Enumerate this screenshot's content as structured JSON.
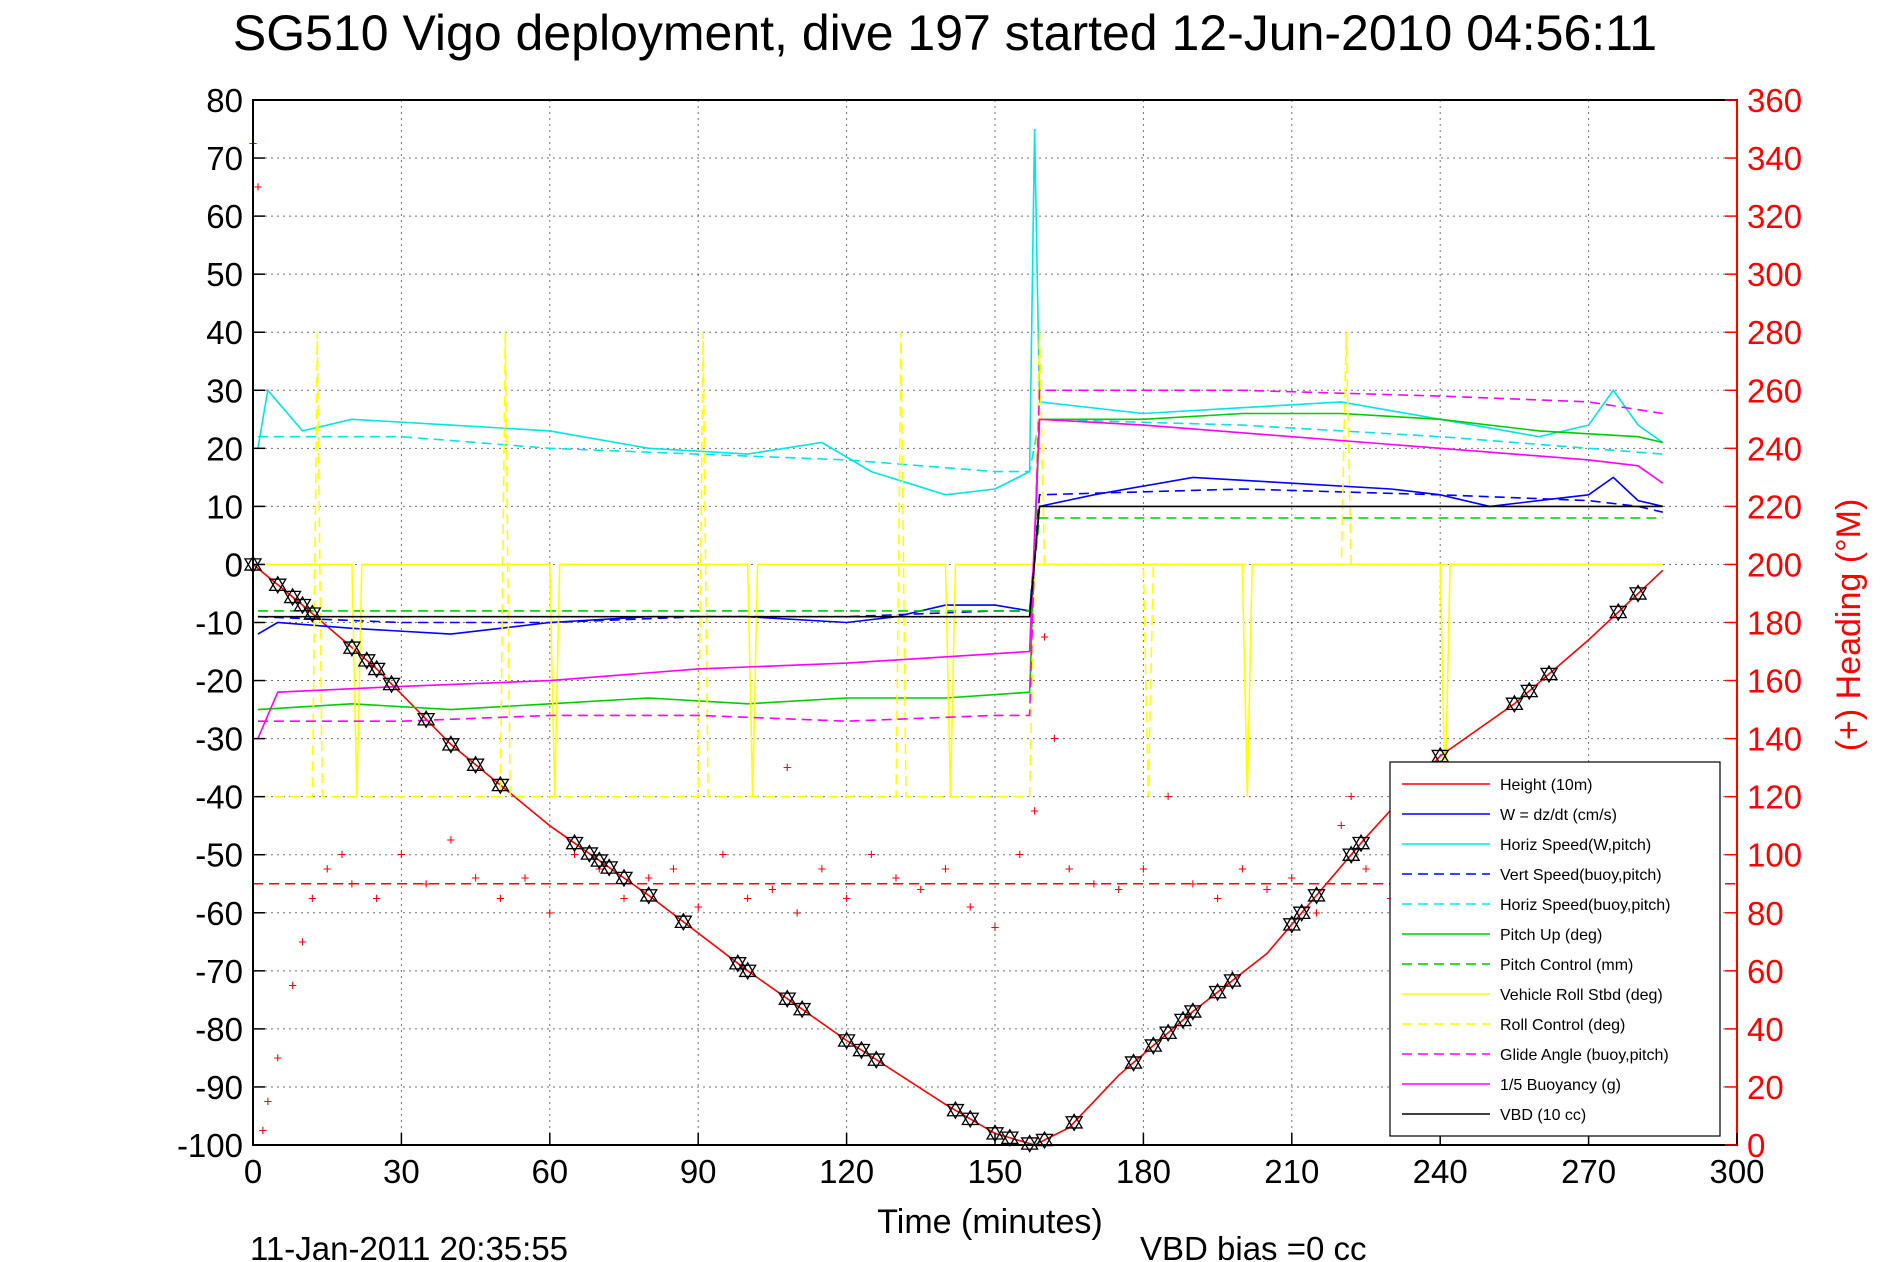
{
  "chart_data": {
    "type": "line",
    "title": "SG510 Vigo deployment, dive 197 started 12-Jun-2010 04:56:11",
    "xlabel": "Time (minutes)",
    "ylabel_right": "(+) Heading (°M)",
    "footer_left": "11-Jan-2011 20:35:55",
    "footer_right": "VBD bias =0 cc",
    "xlim": [
      0,
      300
    ],
    "ylim_left": [
      -100,
      80
    ],
    "ylim_right": [
      0,
      360
    ],
    "xticks": [
      "0",
      "30",
      "60",
      "90",
      "120",
      "150",
      "180",
      "210",
      "240",
      "270",
      "300"
    ],
    "yticks_left": [
      "80",
      "70",
      "60",
      "50",
      "40",
      "30",
      "20",
      "10",
      "0",
      "-10",
      "-20",
      "-30",
      "-40",
      "-50",
      "-60",
      "-70",
      "-80",
      "-90",
      "-100"
    ],
    "yticks_right": [
      "360",
      "340",
      "320",
      "300",
      "280",
      "260",
      "240",
      "220",
      "200",
      "180",
      "160",
      "140",
      "120",
      "100",
      "80",
      "60",
      "40",
      "20",
      "0"
    ],
    "grid": true,
    "legend_position": "bottom-right",
    "series": [
      {
        "name": "Height (10m)",
        "color": "#ff0000",
        "style": "solid",
        "points": [
          [
            0,
            0
          ],
          [
            10,
            -7
          ],
          [
            25,
            -18
          ],
          [
            40,
            -31
          ],
          [
            60,
            -45
          ],
          [
            80,
            -57
          ],
          [
            100,
            -70
          ],
          [
            120,
            -82
          ],
          [
            140,
            -93
          ],
          [
            150,
            -98
          ],
          [
            158,
            -100
          ],
          [
            165,
            -97
          ],
          [
            175,
            -88
          ],
          [
            190,
            -77
          ],
          [
            205,
            -67
          ],
          [
            215,
            -57
          ],
          [
            225,
            -47
          ],
          [
            240,
            -33
          ],
          [
            255,
            -24
          ],
          [
            270,
            -13
          ],
          [
            280,
            -5
          ],
          [
            285,
            -1
          ]
        ]
      },
      {
        "name": "W = dz/dt (cm/s)",
        "color": "#0000ff",
        "style": "solid",
        "points": [
          [
            1,
            -12
          ],
          [
            5,
            -10
          ],
          [
            20,
            -11
          ],
          [
            40,
            -12
          ],
          [
            60,
            -10
          ],
          [
            80,
            -9
          ],
          [
            100,
            -9
          ],
          [
            120,
            -10
          ],
          [
            130,
            -9
          ],
          [
            140,
            -7
          ],
          [
            150,
            -7
          ],
          [
            157,
            -8
          ],
          [
            159,
            10
          ],
          [
            170,
            12
          ],
          [
            190,
            15
          ],
          [
            210,
            14
          ],
          [
            230,
            13
          ],
          [
            240,
            12
          ],
          [
            250,
            10
          ],
          [
            260,
            11
          ],
          [
            270,
            12
          ],
          [
            275,
            15
          ],
          [
            280,
            11
          ],
          [
            285,
            10
          ]
        ]
      },
      {
        "name": "Horiz Speed(W,pitch)",
        "color": "#00e5e5",
        "style": "solid",
        "points": [
          [
            1,
            20
          ],
          [
            3,
            30
          ],
          [
            10,
            23
          ],
          [
            20,
            25
          ],
          [
            40,
            24
          ],
          [
            60,
            23
          ],
          [
            80,
            20
          ],
          [
            100,
            19
          ],
          [
            115,
            21
          ],
          [
            125,
            16
          ],
          [
            140,
            12
          ],
          [
            150,
            13
          ],
          [
            157,
            16
          ],
          [
            158,
            75
          ],
          [
            159,
            28
          ],
          [
            180,
            26
          ],
          [
            200,
            27
          ],
          [
            220,
            28
          ],
          [
            240,
            25
          ],
          [
            260,
            22
          ],
          [
            270,
            24
          ],
          [
            275,
            30
          ],
          [
            280,
            24
          ],
          [
            285,
            21
          ]
        ]
      },
      {
        "name": "Vert Speed(buoy,pitch)",
        "color": "#0000ff",
        "style": "dashed",
        "points": [
          [
            1,
            -9
          ],
          [
            30,
            -10
          ],
          [
            60,
            -10
          ],
          [
            90,
            -9
          ],
          [
            120,
            -9
          ],
          [
            150,
            -8
          ],
          [
            157,
            -8
          ],
          [
            159,
            12
          ],
          [
            200,
            13
          ],
          [
            240,
            12
          ],
          [
            270,
            11
          ],
          [
            280,
            10
          ],
          [
            285,
            9
          ]
        ]
      },
      {
        "name": "Horiz Speed(buoy,pitch)",
        "color": "#00e5e5",
        "style": "dashed",
        "points": [
          [
            1,
            22
          ],
          [
            30,
            22
          ],
          [
            60,
            20
          ],
          [
            90,
            19
          ],
          [
            120,
            18
          ],
          [
            150,
            16
          ],
          [
            157,
            16
          ],
          [
            159,
            25
          ],
          [
            200,
            24
          ],
          [
            240,
            22
          ],
          [
            270,
            20
          ],
          [
            285,
            19
          ]
        ]
      },
      {
        "name": "Pitch Up (deg)",
        "color": "#00cc00",
        "style": "solid",
        "points": [
          [
            1,
            -25
          ],
          [
            20,
            -24
          ],
          [
            40,
            -25
          ],
          [
            60,
            -24
          ],
          [
            80,
            -23
          ],
          [
            100,
            -24
          ],
          [
            120,
            -23
          ],
          [
            140,
            -23
          ],
          [
            157,
            -22
          ],
          [
            159,
            25
          ],
          [
            180,
            25
          ],
          [
            200,
            26
          ],
          [
            220,
            26
          ],
          [
            240,
            25
          ],
          [
            260,
            23
          ],
          [
            280,
            22
          ],
          [
            285,
            21
          ]
        ]
      },
      {
        "name": "Pitch Control (mm)",
        "color": "#00cc00",
        "style": "dashed",
        "points": [
          [
            1,
            -8
          ],
          [
            40,
            -8
          ],
          [
            80,
            -8
          ],
          [
            120,
            -8
          ],
          [
            157,
            -8
          ],
          [
            159,
            8
          ],
          [
            200,
            8
          ],
          [
            240,
            8
          ],
          [
            285,
            8
          ]
        ]
      },
      {
        "name": "Vehicle Roll Stbd (deg)",
        "color": "#ffff00",
        "style": "solid",
        "points": [
          [
            1,
            0
          ],
          [
            20,
            0
          ],
          [
            21,
            -40
          ],
          [
            22,
            0
          ],
          [
            60,
            0
          ],
          [
            61,
            -40
          ],
          [
            62,
            0
          ],
          [
            100,
            0
          ],
          [
            101,
            -40
          ],
          [
            102,
            0
          ],
          [
            140,
            0
          ],
          [
            141,
            -40
          ],
          [
            142,
            0
          ],
          [
            159,
            0
          ],
          [
            200,
            0
          ],
          [
            201,
            -40
          ],
          [
            202,
            0
          ],
          [
            240,
            0
          ],
          [
            241,
            -40
          ],
          [
            242,
            0
          ],
          [
            285,
            0
          ]
        ]
      },
      {
        "name": "Roll Control (deg)",
        "color": "#ffff00",
        "style": "dashed",
        "points": [
          [
            1,
            -40
          ],
          [
            12,
            -40
          ],
          [
            13,
            40
          ],
          [
            14,
            -40
          ],
          [
            50,
            -40
          ],
          [
            51,
            40
          ],
          [
            52,
            -40
          ],
          [
            90,
            -40
          ],
          [
            91,
            40
          ],
          [
            92,
            -40
          ],
          [
            130,
            -40
          ],
          [
            131,
            40
          ],
          [
            132,
            -40
          ],
          [
            157,
            -40
          ],
          [
            159,
            40
          ],
          [
            160,
            0
          ],
          [
            180,
            0
          ],
          [
            181,
            -40
          ],
          [
            182,
            0
          ],
          [
            220,
            0
          ],
          [
            221,
            40
          ],
          [
            222,
            0
          ],
          [
            285,
            0
          ]
        ]
      },
      {
        "name": "Glide Angle (buoy,pitch)",
        "color": "#ff00ff",
        "style": "dashed",
        "points": [
          [
            1,
            -27
          ],
          [
            30,
            -27
          ],
          [
            60,
            -26
          ],
          [
            90,
            -26
          ],
          [
            120,
            -27
          ],
          [
            150,
            -26
          ],
          [
            157,
            -26
          ],
          [
            159,
            30
          ],
          [
            200,
            30
          ],
          [
            240,
            29
          ],
          [
            270,
            28
          ],
          [
            285,
            26
          ]
        ]
      },
      {
        "name": "1/5 Buoyancy (g)",
        "color": "#ff00ff",
        "style": "solid",
        "points": [
          [
            1,
            -30
          ],
          [
            5,
            -22
          ],
          [
            30,
            -21
          ],
          [
            60,
            -20
          ],
          [
            90,
            -18
          ],
          [
            120,
            -17
          ],
          [
            157,
            -15
          ],
          [
            159,
            25
          ],
          [
            180,
            24
          ],
          [
            210,
            22
          ],
          [
            240,
            20
          ],
          [
            270,
            18
          ],
          [
            280,
            17
          ],
          [
            285,
            14
          ]
        ]
      },
      {
        "name": "VBD (10 cc)",
        "color": "#000000",
        "style": "solid",
        "points": [
          [
            1,
            -9
          ],
          [
            157,
            -9
          ],
          [
            159,
            10
          ],
          [
            285,
            10
          ]
        ]
      }
    ],
    "heading": {
      "name": "(+) Heading",
      "color": "#ff0000",
      "marker": "+",
      "axis": "right",
      "mean": 90,
      "points": [
        [
          0,
          345
        ],
        [
          1,
          330
        ],
        [
          2,
          5
        ],
        [
          3,
          15
        ],
        [
          5,
          30
        ],
        [
          8,
          55
        ],
        [
          10,
          70
        ],
        [
          12,
          85
        ],
        [
          15,
          95
        ],
        [
          18,
          100
        ],
        [
          20,
          90
        ],
        [
          25,
          85
        ],
        [
          30,
          100
        ],
        [
          35,
          90
        ],
        [
          40,
          105
        ],
        [
          45,
          92
        ],
        [
          50,
          85
        ],
        [
          55,
          92
        ],
        [
          60,
          80
        ],
        [
          65,
          100
        ],
        [
          70,
          95
        ],
        [
          75,
          85
        ],
        [
          80,
          92
        ],
        [
          85,
          95
        ],
        [
          90,
          82
        ],
        [
          95,
          100
        ],
        [
          100,
          85
        ],
        [
          105,
          88
        ],
        [
          108,
          130
        ],
        [
          110,
          80
        ],
        [
          115,
          95
        ],
        [
          120,
          85
        ],
        [
          125,
          100
        ],
        [
          130,
          92
        ],
        [
          135,
          88
        ],
        [
          140,
          95
        ],
        [
          145,
          82
        ],
        [
          150,
          75
        ],
        [
          155,
          100
        ],
        [
          158,
          115
        ],
        [
          160,
          175
        ],
        [
          162,
          140
        ],
        [
          165,
          95
        ],
        [
          170,
          90
        ],
        [
          175,
          88
        ],
        [
          180,
          95
        ],
        [
          185,
          120
        ],
        [
          190,
          90
        ],
        [
          195,
          85
        ],
        [
          200,
          95
        ],
        [
          205,
          88
        ],
        [
          210,
          92
        ],
        [
          215,
          80
        ],
        [
          220,
          110
        ],
        [
          222,
          120
        ],
        [
          225,
          95
        ],
        [
          230,
          85
        ],
        [
          235,
          92
        ],
        [
          240,
          90
        ]
      ]
    },
    "markers": {
      "name": "Height (10m) markers",
      "symbol": "triangle",
      "color": "#000000",
      "x": [
        0,
        5,
        8,
        10,
        12,
        20,
        23,
        25,
        28,
        35,
        40,
        45,
        50,
        65,
        68,
        70,
        72,
        75,
        80,
        87,
        98,
        100,
        108,
        111,
        120,
        123,
        126,
        142,
        145,
        150,
        153,
        157,
        160,
        166,
        178,
        182,
        185,
        188,
        190,
        195,
        198,
        210,
        212,
        215,
        222,
        224,
        240,
        255,
        258,
        262,
        276,
        280
      ]
    }
  }
}
